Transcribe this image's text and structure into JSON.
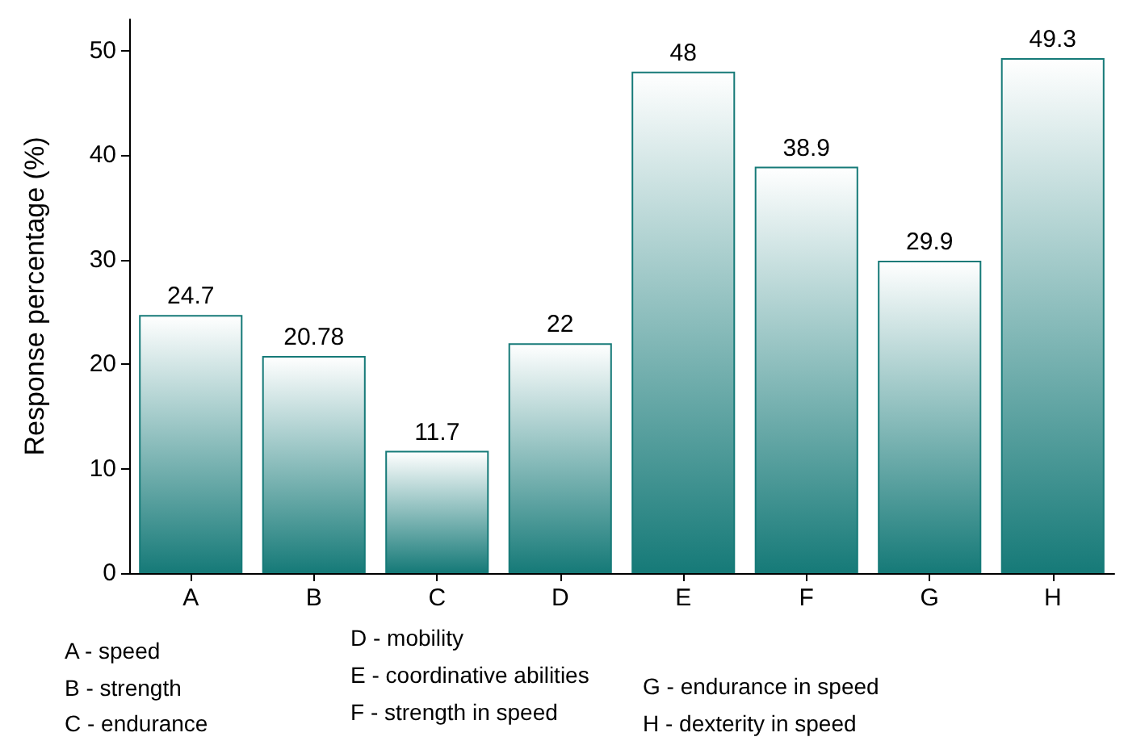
{
  "chart_data": {
    "type": "bar",
    "ylabel": "Response percentage (%)",
    "categories": [
      "A",
      "B",
      "C",
      "D",
      "E",
      "F",
      "G",
      "H"
    ],
    "values": [
      24.7,
      20.78,
      11.7,
      22,
      48,
      38.9,
      29.9,
      49.3
    ],
    "color": "#167a78",
    "ylim": [
      0,
      53
    ],
    "yticks": [
      0,
      10,
      20,
      30,
      40,
      50
    ],
    "data_labels": true,
    "annotations": [
      "A - speed",
      "B - strength",
      "C - endurance",
      "D - mobility",
      "E - coordinative abilities",
      "F - strength in speed",
      "G - endurance in speed",
      "H - dexterity in speed"
    ]
  }
}
